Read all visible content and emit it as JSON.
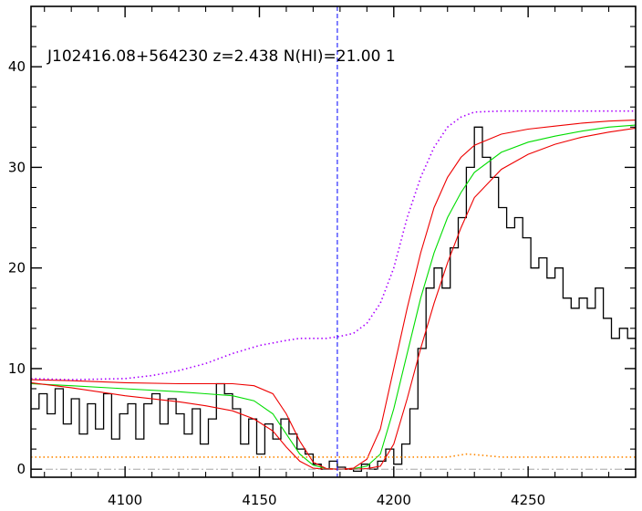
{
  "chart_data": {
    "type": "line",
    "title": "J102416.08+564230 z=2.438 N(HI)=21.00 1",
    "xlabel": "",
    "ylabel": "",
    "xlim": [
      4065,
      4290
    ],
    "ylim": [
      -0.8,
      46
    ],
    "xticks": [
      4100,
      4150,
      4200,
      4250
    ],
    "yticks": [
      0,
      10,
      20,
      30,
      40
    ],
    "grid": false,
    "legend": "none",
    "marker_line": {
      "x": 4179,
      "color": "#0000ff"
    },
    "series": [
      {
        "style": "step",
        "color": "#000000",
        "x": [
          4065,
          4068,
          4071,
          4074,
          4077,
          4080,
          4083,
          4086,
          4089,
          4092,
          4095,
          4098,
          4101,
          4104,
          4107,
          4110,
          4113,
          4116,
          4119,
          4122,
          4125,
          4128,
          4131,
          4134,
          4137,
          4140,
          4143,
          4146,
          4149,
          4152,
          4155,
          4158,
          4161,
          4164,
          4167,
          4170,
          4173,
          4176,
          4179,
          4182,
          4185,
          4188,
          4191,
          4194,
          4197,
          4200,
          4203,
          4206,
          4209,
          4212,
          4215,
          4218,
          4221,
          4224,
          4227,
          4230,
          4233,
          4236,
          4239,
          4242,
          4245,
          4248,
          4251,
          4254,
          4257,
          4260,
          4263,
          4266,
          4269,
          4272,
          4275,
          4278,
          4281,
          4284,
          4287,
          4290
        ],
        "y": [
          6.0,
          7.5,
          5.5,
          8.0,
          4.5,
          7.0,
          3.5,
          6.5,
          4.0,
          7.5,
          3.0,
          5.5,
          6.5,
          3.0,
          6.5,
          7.5,
          4.5,
          7.0,
          5.5,
          3.5,
          6.0,
          2.5,
          5.0,
          8.5,
          7.5,
          6.0,
          2.5,
          5.0,
          1.5,
          4.5,
          3.0,
          5.0,
          3.5,
          2.0,
          1.5,
          0.5,
          0.0,
          0.8,
          0.2,
          0.0,
          -0.2,
          0.5,
          0.0,
          0.8,
          2.0,
          0.5,
          2.5,
          6.0,
          12.0,
          18.0,
          20.0,
          18.0,
          22.0,
          25.0,
          30.0,
          34.0,
          31.0,
          29.0,
          26.0,
          24.0,
          25.0,
          23.0,
          20.0,
          21.0,
          19.0,
          20.0,
          17.0,
          16.0,
          17.0,
          16.0,
          18.0,
          15.0,
          13.0,
          14.0,
          13.0,
          12.5
        ]
      },
      {
        "style": "line",
        "color": "#00dd00",
        "x": [
          4065,
          4080,
          4100,
          4120,
          4130,
          4140,
          4148,
          4155,
          4160,
          4165,
          4170,
          4175,
          4180,
          4185,
          4190,
          4195,
          4200,
          4205,
          4210,
          4215,
          4220,
          4225,
          4230,
          4240,
          4250,
          4260,
          4270,
          4280,
          4290
        ],
        "y": [
          8.5,
          8.3,
          8.0,
          7.7,
          7.5,
          7.3,
          6.8,
          5.5,
          3.5,
          1.5,
          0.4,
          0.05,
          0.0,
          0.05,
          0.3,
          1.5,
          6.0,
          11.5,
          17.0,
          21.5,
          25.0,
          27.5,
          29.5,
          31.5,
          32.5,
          33.1,
          33.6,
          34.0,
          34.2
        ]
      },
      {
        "style": "line",
        "color": "#ee0000",
        "x": [
          4065,
          4080,
          4100,
          4120,
          4130,
          4140,
          4148,
          4155,
          4160,
          4165,
          4170,
          4175,
          4180,
          4185,
          4190,
          4195,
          4200,
          4205,
          4210,
          4215,
          4220,
          4225,
          4230,
          4240,
          4250,
          4260,
          4270,
          4280,
          4290
        ],
        "y": [
          8.9,
          8.8,
          8.6,
          8.5,
          8.5,
          8.5,
          8.3,
          7.5,
          5.5,
          2.8,
          0.7,
          0.05,
          0.0,
          0.1,
          1.0,
          4.0,
          10.0,
          16.0,
          21.5,
          26.0,
          29.0,
          31.0,
          32.2,
          33.3,
          33.8,
          34.1,
          34.4,
          34.6,
          34.7
        ]
      },
      {
        "style": "line",
        "color": "#ee0000",
        "x": [
          4065,
          4080,
          4100,
          4120,
          4130,
          4140,
          4148,
          4155,
          4160,
          4165,
          4170,
          4175,
          4180,
          4185,
          4190,
          4195,
          4200,
          4205,
          4210,
          4215,
          4220,
          4225,
          4230,
          4240,
          4250,
          4260,
          4270,
          4280,
          4290
        ],
        "y": [
          8.6,
          8.1,
          7.3,
          6.7,
          6.3,
          5.8,
          5.0,
          3.8,
          2.2,
          0.8,
          0.1,
          0.0,
          0.0,
          0.0,
          0.05,
          0.3,
          2.5,
          7.0,
          12.0,
          16.5,
          20.5,
          24.0,
          27.0,
          29.8,
          31.3,
          32.3,
          33.0,
          33.5,
          33.9
        ]
      },
      {
        "style": "dotted",
        "color": "#aa00ff",
        "x": [
          4065,
          4080,
          4100,
          4110,
          4120,
          4130,
          4140,
          4150,
          4160,
          4165,
          4170,
          4175,
          4180,
          4185,
          4190,
          4195,
          4200,
          4205,
          4210,
          4215,
          4220,
          4225,
          4230,
          4240,
          4260,
          4290
        ],
        "y": [
          9.0,
          8.9,
          9.0,
          9.3,
          9.8,
          10.5,
          11.5,
          12.3,
          12.8,
          13.0,
          13.0,
          13.0,
          13.2,
          13.5,
          14.5,
          16.5,
          20.0,
          25.0,
          29.0,
          32.0,
          34.0,
          35.0,
          35.5,
          35.6,
          35.6,
          35.6
        ]
      },
      {
        "style": "dotted",
        "color": "#ff8800",
        "x": [
          4065,
          4100,
          4150,
          4200,
          4220,
          4227,
          4232,
          4240,
          4270,
          4290
        ],
        "y": [
          1.2,
          1.2,
          1.2,
          1.2,
          1.2,
          1.5,
          1.4,
          1.2,
          1.2,
          1.2
        ]
      },
      {
        "style": "dashdot",
        "color": "#999999",
        "x": [
          4065,
          4290
        ],
        "y": [
          0,
          0
        ]
      }
    ]
  }
}
